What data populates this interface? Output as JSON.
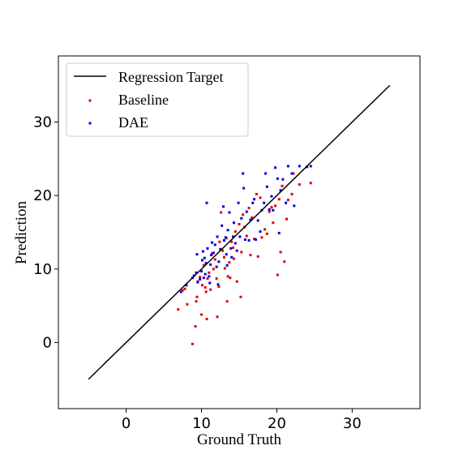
{
  "chart_data": {
    "type": "scatter",
    "title": "",
    "xlabel": "Ground Truth",
    "ylabel": "Prediction",
    "xlim": [
      -9,
      39
    ],
    "ylim": [
      -9,
      39
    ],
    "xticks": [
      0,
      10,
      20,
      30
    ],
    "yticks": [
      0,
      10,
      20,
      30
    ],
    "grid": false,
    "legend_position": "top-left",
    "legend": [
      "Regression Target",
      "Baseline",
      "DAE"
    ],
    "regression_target": {
      "name": "Regression Target",
      "color": "#000000",
      "x": [
        -5,
        35
      ],
      "y": [
        -5,
        35
      ]
    },
    "series": [
      {
        "name": "Baseline",
        "color": "#e00000",
        "points": [
          [
            6.9,
            4.5
          ],
          [
            7.5,
            7.1
          ],
          [
            7.8,
            7.3
          ],
          [
            8.1,
            5.2
          ],
          [
            8.8,
            -0.2
          ],
          [
            9.2,
            2.2
          ],
          [
            9.3,
            5.6
          ],
          [
            9.4,
            6.2
          ],
          [
            9.5,
            8.3
          ],
          [
            9.8,
            8.9
          ],
          [
            10.0,
            3.8
          ],
          [
            10.1,
            7.8
          ],
          [
            10.3,
            10.5
          ],
          [
            10.5,
            7.5
          ],
          [
            10.6,
            6.9
          ],
          [
            10.7,
            3.2
          ],
          [
            10.8,
            8.7
          ],
          [
            11.0,
            9.5
          ],
          [
            11.2,
            7.2
          ],
          [
            11.4,
            12.1
          ],
          [
            11.6,
            10.0
          ],
          [
            11.8,
            11.3
          ],
          [
            12.0,
            8.7
          ],
          [
            12.1,
            3.5
          ],
          [
            12.3,
            7.6
          ],
          [
            12.4,
            13.7
          ],
          [
            12.6,
            17.7
          ],
          [
            12.8,
            12.5
          ],
          [
            13.0,
            11.6
          ],
          [
            13.1,
            10.1
          ],
          [
            13.3,
            14.2
          ],
          [
            13.4,
            5.6
          ],
          [
            13.5,
            9.0
          ],
          [
            13.7,
            10.9
          ],
          [
            13.8,
            8.8
          ],
          [
            14.0,
            13.7
          ],
          [
            14.2,
            12.9
          ],
          [
            14.3,
            11.4
          ],
          [
            14.5,
            15.1
          ],
          [
            14.7,
            8.3
          ],
          [
            15.0,
            16.1
          ],
          [
            15.2,
            6.2
          ],
          [
            15.3,
            12.3
          ],
          [
            15.5,
            17.4
          ],
          [
            15.7,
            15.7
          ],
          [
            16.0,
            14.5
          ],
          [
            16.3,
            18.3
          ],
          [
            16.5,
            11.9
          ],
          [
            16.7,
            17.0
          ],
          [
            17.0,
            14.1
          ],
          [
            17.3,
            20.2
          ],
          [
            17.5,
            11.7
          ],
          [
            17.8,
            19.7
          ],
          [
            18.0,
            14.3
          ],
          [
            18.4,
            15.4
          ],
          [
            18.7,
            14.8
          ],
          [
            19.0,
            17.8
          ],
          [
            19.3,
            18.4
          ],
          [
            19.5,
            16.3
          ],
          [
            19.8,
            18.6
          ],
          [
            20.1,
            9.2
          ],
          [
            20.3,
            19.5
          ],
          [
            20.5,
            12.3
          ],
          [
            20.7,
            21.3
          ],
          [
            21.0,
            11.0
          ],
          [
            21.3,
            16.8
          ],
          [
            21.5,
            19.4
          ],
          [
            22.0,
            20.2
          ],
          [
            22.2,
            23.0
          ],
          [
            23.0,
            21.5
          ],
          [
            24.5,
            21.7
          ]
        ]
      },
      {
        "name": "DAE",
        "color": "#0000e0",
        "points": [
          [
            7.3,
            6.9
          ],
          [
            8.0,
            7.8
          ],
          [
            8.8,
            8.8
          ],
          [
            9.0,
            9.1
          ],
          [
            9.3,
            9.5
          ],
          [
            9.4,
            12.0
          ],
          [
            9.5,
            8.2
          ],
          [
            9.8,
            8.6
          ],
          [
            10.0,
            9.7
          ],
          [
            10.1,
            11.2
          ],
          [
            10.2,
            12.4
          ],
          [
            10.3,
            8.8
          ],
          [
            10.4,
            11.5
          ],
          [
            10.5,
            9.3
          ],
          [
            10.6,
            10.8
          ],
          [
            10.7,
            19.0
          ],
          [
            10.8,
            12.8
          ],
          [
            11.0,
            9.0
          ],
          [
            11.1,
            8.1
          ],
          [
            11.2,
            10.6
          ],
          [
            11.3,
            11.9
          ],
          [
            11.4,
            13.6
          ],
          [
            11.6,
            12.2
          ],
          [
            11.8,
            13.3
          ],
          [
            12.0,
            10.3
          ],
          [
            12.1,
            14.4
          ],
          [
            12.2,
            7.9
          ],
          [
            12.3,
            11.0
          ],
          [
            12.5,
            12.7
          ],
          [
            12.7,
            15.9
          ],
          [
            12.9,
            18.5
          ],
          [
            13.0,
            13.9
          ],
          [
            13.2,
            14.3
          ],
          [
            13.3,
            12.0
          ],
          [
            13.4,
            10.5
          ],
          [
            13.5,
            15.3
          ],
          [
            13.7,
            17.7
          ],
          [
            13.9,
            12.8
          ],
          [
            14.0,
            11.6
          ],
          [
            14.2,
            14.4
          ],
          [
            14.3,
            16.3
          ],
          [
            14.5,
            13.5
          ],
          [
            14.7,
            12.5
          ],
          [
            14.9,
            19.0
          ],
          [
            15.1,
            14.4
          ],
          [
            15.3,
            16.9
          ],
          [
            15.5,
            23.0
          ],
          [
            15.6,
            21.0
          ],
          [
            15.8,
            14.0
          ],
          [
            16.0,
            17.8
          ],
          [
            16.3,
            13.9
          ],
          [
            16.5,
            16.7
          ],
          [
            16.8,
            19.0
          ],
          [
            17.0,
            19.5
          ],
          [
            17.2,
            14.0
          ],
          [
            17.5,
            16.6
          ],
          [
            17.8,
            15.1
          ],
          [
            18.0,
            18.0
          ],
          [
            18.3,
            19.0
          ],
          [
            18.5,
            23.0
          ],
          [
            18.7,
            21.2
          ],
          [
            19.0,
            18.1
          ],
          [
            19.3,
            19.9
          ],
          [
            19.5,
            18.0
          ],
          [
            19.8,
            23.8
          ],
          [
            20.1,
            22.3
          ],
          [
            20.3,
            14.9
          ],
          [
            20.5,
            20.7
          ],
          [
            20.8,
            22.2
          ],
          [
            21.2,
            19.0
          ],
          [
            21.5,
            24.0
          ],
          [
            22.0,
            23.0
          ],
          [
            22.3,
            18.6
          ],
          [
            23.0,
            24.0
          ],
          [
            24.0,
            23.9
          ],
          [
            24.5,
            24.0
          ]
        ]
      }
    ]
  }
}
